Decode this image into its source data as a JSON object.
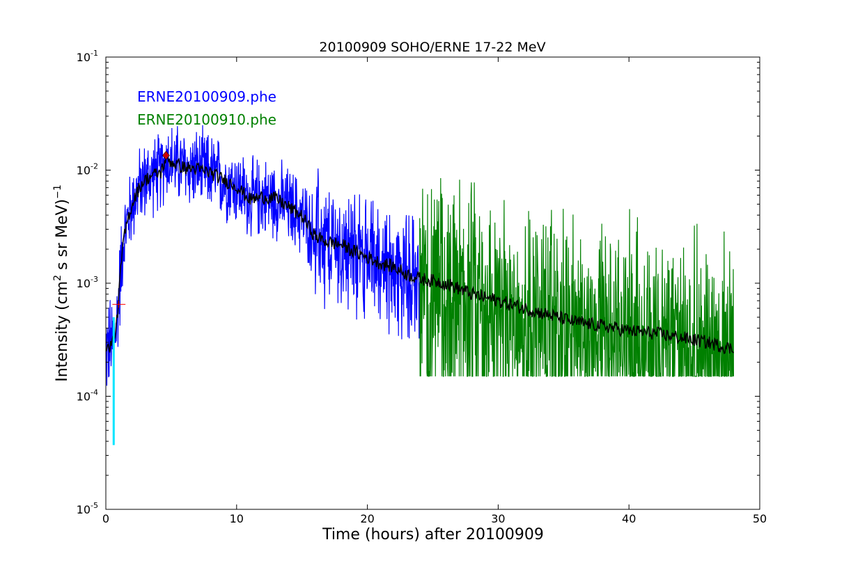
{
  "chart_data": {
    "type": "line",
    "title": "20100909 SOHO/ERNE 17-22 MeV",
    "xlabel": "Time (hours) after 20100909",
    "ylabel": {
      "prefix": "Intensity (cm",
      "sup": "2",
      "middle": "  s sr MeV)",
      "suffix_sup": "−1"
    },
    "xlim": [
      0,
      50
    ],
    "ylim": [
      1e-05,
      0.1
    ],
    "yscale": "log",
    "x_ticks": [
      {
        "value": 0,
        "label": "0"
      },
      {
        "value": 10,
        "label": "10"
      },
      {
        "value": 20,
        "label": "20"
      },
      {
        "value": 30,
        "label": "30"
      },
      {
        "value": 40,
        "label": "40"
      },
      {
        "value": 50,
        "label": "50"
      }
    ],
    "y_ticks": [
      {
        "value": 1e-05,
        "base": "10",
        "exp": "-5"
      },
      {
        "value": 0.0001,
        "base": "10",
        "exp": "-4"
      },
      {
        "value": 0.001,
        "base": "10",
        "exp": "-3"
      },
      {
        "value": 0.01,
        "base": "10",
        "exp": "-2"
      },
      {
        "value": 0.1,
        "base": "10",
        "exp": "-1"
      }
    ],
    "legend": [
      {
        "label": "ERNE20100909.phe",
        "color": "#0000ff"
      },
      {
        "label": "ERNE20100910.phe",
        "color": "#008000"
      }
    ],
    "legend_placement": "top-left",
    "series": [
      {
        "name": "ERNE20100909.phe",
        "color": "#0000ff",
        "style": "noisy",
        "x_range": [
          0,
          24
        ],
        "envelope": [
          [
            0.0,
            0.00025
          ],
          [
            0.5,
            0.0003
          ],
          [
            0.8,
            0.0004
          ],
          [
            1.0,
            0.0008
          ],
          [
            1.3,
            0.0022
          ],
          [
            1.7,
            0.0038
          ],
          [
            2.2,
            0.0058
          ],
          [
            2.8,
            0.0078
          ],
          [
            3.5,
            0.009
          ],
          [
            4.2,
            0.0095
          ],
          [
            4.6,
            0.0128
          ],
          [
            5.0,
            0.0118
          ],
          [
            6.0,
            0.0105
          ],
          [
            7.0,
            0.0102
          ],
          [
            8.0,
            0.0095
          ],
          [
            9.0,
            0.0082
          ],
          [
            10.0,
            0.0072
          ],
          [
            11.0,
            0.0055
          ],
          [
            12.0,
            0.0058
          ],
          [
            13.0,
            0.0056
          ],
          [
            14.0,
            0.0047
          ],
          [
            15.0,
            0.0039
          ],
          [
            16.0,
            0.0026
          ],
          [
            17.0,
            0.0023
          ],
          [
            18.0,
            0.0022
          ],
          [
            19.0,
            0.0019
          ],
          [
            20.0,
            0.0017
          ],
          [
            21.0,
            0.0015
          ],
          [
            22.0,
            0.0014
          ],
          [
            23.0,
            0.0012
          ],
          [
            24.0,
            0.0011
          ]
        ]
      },
      {
        "name": "ERNE20100910.phe",
        "color": "#008000",
        "style": "noisy",
        "x_range": [
          24,
          48
        ],
        "floor": 0.00015,
        "envelope": [
          [
            24.0,
            0.0011
          ],
          [
            26.0,
            0.001
          ],
          [
            28.0,
            0.0008
          ],
          [
            30.0,
            0.0007
          ],
          [
            32.0,
            0.0006
          ],
          [
            34.0,
            0.00052
          ],
          [
            36.0,
            0.00045
          ],
          [
            38.0,
            0.00042
          ],
          [
            40.0,
            0.00038
          ],
          [
            42.0,
            0.00036
          ],
          [
            44.0,
            0.00033
          ],
          [
            46.0,
            0.0003
          ],
          [
            48.0,
            0.00026
          ]
        ]
      },
      {
        "name": "smoothed",
        "color": "#000000",
        "style": "smooth",
        "x_range": [
          0,
          48
        ],
        "envelope": [
          [
            0.0,
            0.00025
          ],
          [
            0.5,
            0.0003
          ],
          [
            0.8,
            0.0004
          ],
          [
            1.0,
            0.0008
          ],
          [
            1.3,
            0.0022
          ],
          [
            1.7,
            0.0038
          ],
          [
            2.2,
            0.0058
          ],
          [
            2.8,
            0.0078
          ],
          [
            3.5,
            0.009
          ],
          [
            4.2,
            0.0095
          ],
          [
            4.6,
            0.0128
          ],
          [
            5.0,
            0.0118
          ],
          [
            6.0,
            0.0105
          ],
          [
            7.0,
            0.0102
          ],
          [
            8.0,
            0.0095
          ],
          [
            9.0,
            0.0082
          ],
          [
            10.0,
            0.0072
          ],
          [
            11.0,
            0.0055
          ],
          [
            12.0,
            0.0058
          ],
          [
            13.0,
            0.0056
          ],
          [
            14.0,
            0.0047
          ],
          [
            15.0,
            0.0039
          ],
          [
            16.0,
            0.0026
          ],
          [
            17.0,
            0.0023
          ],
          [
            18.0,
            0.0022
          ],
          [
            19.0,
            0.0019
          ],
          [
            20.0,
            0.0017
          ],
          [
            21.0,
            0.0015
          ],
          [
            22.0,
            0.0014
          ],
          [
            23.0,
            0.0012
          ],
          [
            24.0,
            0.0011
          ],
          [
            26.0,
            0.001
          ],
          [
            28.0,
            0.0008
          ],
          [
            30.0,
            0.0007
          ],
          [
            32.0,
            0.0006
          ],
          [
            34.0,
            0.00052
          ],
          [
            36.0,
            0.00045
          ],
          [
            38.0,
            0.00042
          ],
          [
            40.0,
            0.00038
          ],
          [
            42.0,
            0.00036
          ],
          [
            44.0,
            0.00033
          ],
          [
            46.0,
            0.0003
          ],
          [
            48.0,
            0.00026
          ]
        ]
      }
    ],
    "markers": [
      {
        "name": "onset-error-bar",
        "type": "vline",
        "color": "#00e5ff",
        "x": 0.6,
        "y_range": [
          3.7e-05,
          0.0005
        ]
      },
      {
        "name": "onset-marker",
        "type": "plus",
        "color": "#ff0000",
        "x": 1.0,
        "y": 0.00065,
        "half_width_x": 0.5
      },
      {
        "name": "peak-marker",
        "type": "diamond",
        "color": "#cc0000",
        "x": 4.6,
        "y": 0.0135
      }
    ]
  }
}
